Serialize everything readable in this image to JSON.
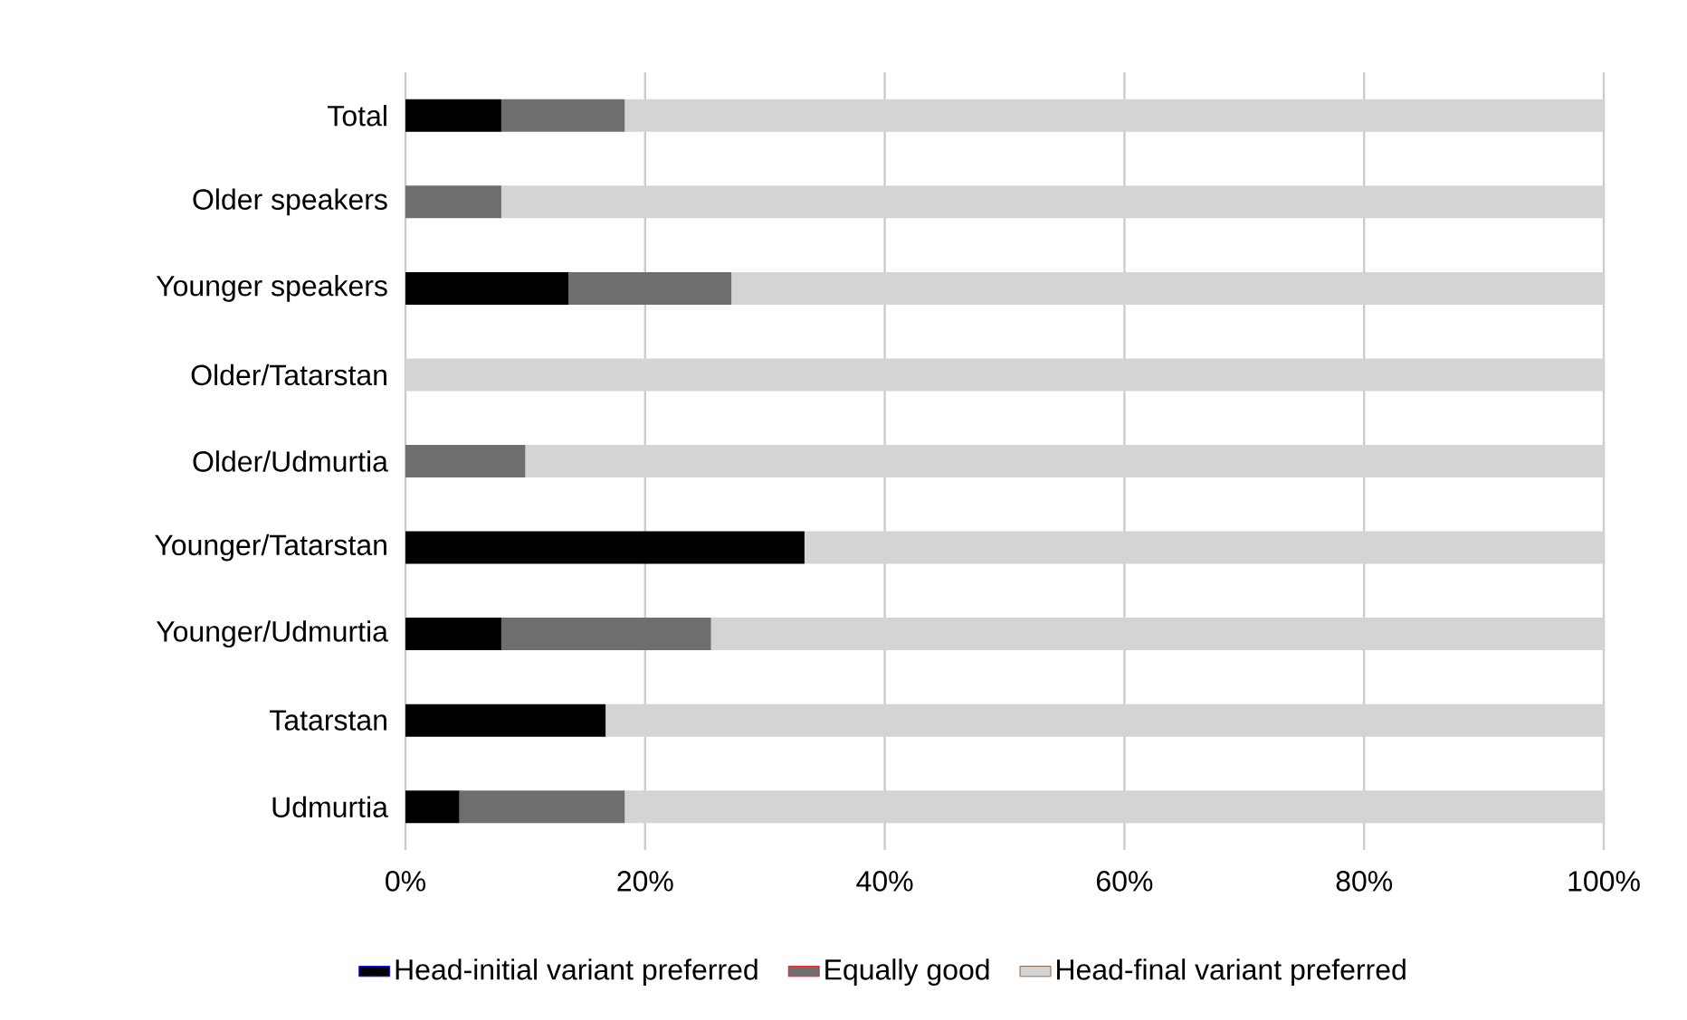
{
  "chart_data": {
    "type": "bar",
    "orientation": "horizontal",
    "stacked": true,
    "categories": [
      "Total",
      "Older speakers",
      "Younger speakers",
      "Older/Tatarstan",
      "Older/Udmurtia",
      "Younger/Tatarstan",
      "Younger/Udmurtia",
      "Tatarstan",
      "Udmurtia"
    ],
    "series": [
      {
        "name": "Head-initial variant preferred",
        "color": "#000000",
        "values": [
          8,
          0,
          13.6,
          0,
          0,
          33.3,
          8,
          16.7,
          4.5
        ]
      },
      {
        "name": "Equally good",
        "color": "#6e6e6e",
        "values": [
          10.3,
          8,
          13.6,
          0,
          10,
          0,
          17.5,
          0,
          13.8
        ]
      },
      {
        "name": "Head-final variant preferred",
        "color": "#d4d4d4",
        "values": [
          81.7,
          92,
          72.8,
          100,
          90,
          66.7,
          74.5,
          83.3,
          81.7
        ]
      }
    ],
    "xlim": [
      0,
      100
    ],
    "xticks": [
      {
        "value": 0,
        "label": "0%"
      },
      {
        "value": 20,
        "label": "20%"
      },
      {
        "value": 40,
        "label": "40%"
      },
      {
        "value": 60,
        "label": "60%"
      },
      {
        "value": 80,
        "label": "80%"
      },
      {
        "value": 100,
        "label": "100%"
      }
    ],
    "grid": "x",
    "legend": "bottom"
  }
}
